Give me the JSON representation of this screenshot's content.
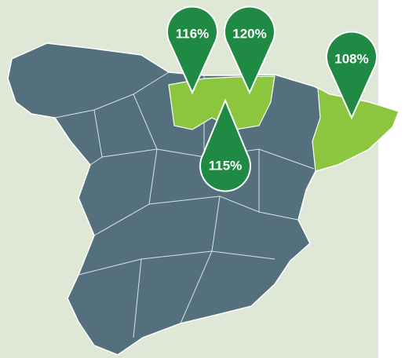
{
  "pins": [
    {
      "label": "116%"
    },
    {
      "label": "120%"
    },
    {
      "label": "108%"
    },
    {
      "label": "115%"
    }
  ]
}
